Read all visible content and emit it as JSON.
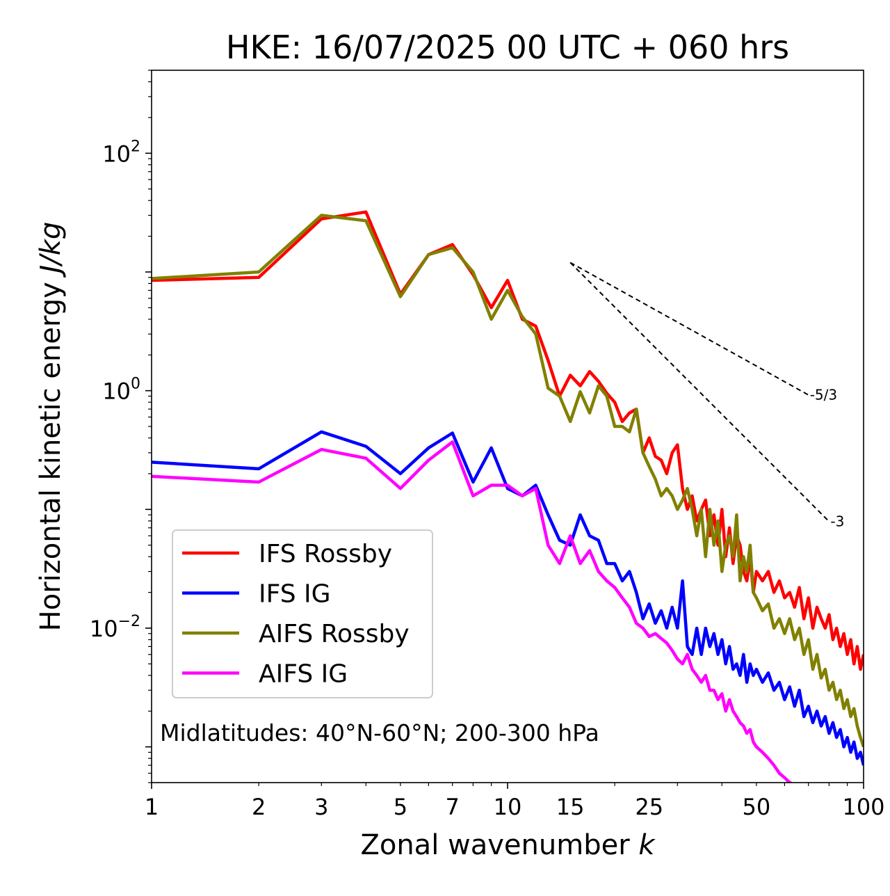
{
  "chart_data": {
    "type": "line",
    "title": "HKE: 16/07/2025 00 UTC + 060 hrs",
    "xlabel_text": "Zonal wavenumber ",
    "xlabel_symbol": "k",
    "ylabel_text": "Horizontal kinetic energy ",
    "ylabel_unit": "J/kg",
    "x_scale": "log",
    "y_scale": "log",
    "xlim": [
      1,
      100
    ],
    "ylim": [
      0.0005,
      500
    ],
    "x_ticks": [
      {
        "value": 1,
        "label": "1"
      },
      {
        "value": 2,
        "label": "2"
      },
      {
        "value": 3,
        "label": "3"
      },
      {
        "value": 5,
        "label": "5"
      },
      {
        "value": 7,
        "label": "7"
      },
      {
        "value": 10,
        "label": "10"
      },
      {
        "value": 15,
        "label": "15"
      },
      {
        "value": 25,
        "label": "25"
      },
      {
        "value": 50,
        "label": "50"
      },
      {
        "value": 100,
        "label": "100"
      }
    ],
    "y_ticks": [
      {
        "value": 100,
        "base": "10",
        "exp": "2"
      },
      {
        "value": 1,
        "base": "10",
        "exp": "0"
      },
      {
        "value": 0.01,
        "base": "10",
        "exp": "−2"
      }
    ],
    "legend_position": "lower-left",
    "annotation": "Midlatitudes: 40°N-60°N; 200-300 hPa",
    "reference_lines": [
      {
        "label": "-5/3",
        "slope": -1.6667,
        "x_start": 15,
        "y_start": 12,
        "x_end": 70
      },
      {
        "label": "-3",
        "slope": -3,
        "x_start": 15,
        "y_start": 12,
        "x_end": 80
      }
    ],
    "series": [
      {
        "name": "IFS Rossby",
        "color": "#ff0000",
        "x": [
          1,
          2,
          3,
          4,
          5,
          6,
          7,
          8,
          9,
          10,
          11,
          12,
          13,
          14,
          15,
          16,
          17,
          18,
          19,
          20,
          21,
          22,
          23,
          24,
          25,
          26,
          27,
          28,
          29,
          30,
          31,
          32,
          33,
          34,
          35,
          36,
          37,
          38,
          39,
          40,
          41,
          42,
          43,
          44,
          45,
          46,
          47,
          48,
          49,
          50,
          52,
          54,
          56,
          58,
          60,
          62,
          64,
          66,
          68,
          70,
          72,
          74,
          76,
          78,
          80,
          82,
          84,
          86,
          88,
          90,
          92,
          94,
          96,
          98,
          100
        ],
        "values": [
          8.5,
          9,
          28,
          32,
          6.5,
          14,
          17,
          9.5,
          5,
          8.5,
          4,
          3.5,
          1.8,
          0.9,
          1.35,
          1.1,
          1.45,
          1.2,
          0.95,
          0.8,
          0.55,
          0.65,
          0.7,
          0.3,
          0.4,
          0.28,
          0.26,
          0.2,
          0.3,
          0.35,
          0.15,
          0.1,
          0.13,
          0.08,
          0.1,
          0.12,
          0.06,
          0.09,
          0.05,
          0.1,
          0.04,
          0.07,
          0.035,
          0.06,
          0.05,
          0.03,
          0.025,
          0.04,
          0.02,
          0.03,
          0.025,
          0.03,
          0.02,
          0.025,
          0.018,
          0.02,
          0.015,
          0.022,
          0.012,
          0.018,
          0.01,
          0.015,
          0.012,
          0.01,
          0.013,
          0.008,
          0.01,
          0.007,
          0.009,
          0.006,
          0.008,
          0.005,
          0.007,
          0.0045,
          0.006
        ]
      },
      {
        "name": "IFS IG",
        "color": "#0000ff",
        "x": [
          1,
          2,
          3,
          4,
          5,
          6,
          7,
          8,
          9,
          10,
          11,
          12,
          13,
          14,
          15,
          16,
          17,
          18,
          19,
          20,
          21,
          22,
          23,
          24,
          25,
          26,
          27,
          28,
          29,
          30,
          31,
          32,
          33,
          34,
          35,
          36,
          37,
          38,
          39,
          40,
          41,
          42,
          43,
          44,
          45,
          46,
          47,
          48,
          49,
          50,
          52,
          54,
          56,
          58,
          60,
          62,
          64,
          66,
          68,
          70,
          72,
          74,
          76,
          78,
          80,
          82,
          84,
          86,
          88,
          90,
          92,
          94,
          96,
          98,
          100
        ],
        "values": [
          0.25,
          0.22,
          0.45,
          0.34,
          0.2,
          0.33,
          0.44,
          0.17,
          0.33,
          0.15,
          0.13,
          0.16,
          0.09,
          0.055,
          0.05,
          0.09,
          0.06,
          0.055,
          0.035,
          0.035,
          0.025,
          0.03,
          0.02,
          0.012,
          0.016,
          0.011,
          0.014,
          0.01,
          0.015,
          0.01,
          0.025,
          0.007,
          0.006,
          0.01,
          0.006,
          0.01,
          0.007,
          0.009,
          0.006,
          0.008,
          0.005,
          0.007,
          0.0045,
          0.005,
          0.004,
          0.006,
          0.0035,
          0.005,
          0.004,
          0.0045,
          0.0035,
          0.0042,
          0.003,
          0.0035,
          0.0025,
          0.0032,
          0.0022,
          0.003,
          0.0018,
          0.0022,
          0.0016,
          0.002,
          0.0015,
          0.0018,
          0.0013,
          0.0016,
          0.0012,
          0.0014,
          0.001,
          0.0012,
          0.0009,
          0.0011,
          0.0008,
          0.0009,
          0.0007
        ]
      },
      {
        "name": "AIFS Rossby",
        "color": "#808000",
        "x": [
          1,
          2,
          3,
          4,
          5,
          6,
          7,
          8,
          9,
          10,
          11,
          12,
          13,
          14,
          15,
          16,
          17,
          18,
          19,
          20,
          21,
          22,
          23,
          24,
          25,
          26,
          27,
          28,
          29,
          30,
          31,
          32,
          33,
          34,
          35,
          36,
          37,
          38,
          39,
          40,
          41,
          42,
          43,
          44,
          45,
          46,
          47,
          48,
          49,
          50,
          52,
          54,
          56,
          58,
          60,
          62,
          64,
          66,
          68,
          70,
          72,
          74,
          76,
          78,
          80,
          82,
          84,
          86,
          88,
          90,
          92,
          94,
          96,
          98,
          100
        ],
        "values": [
          8.8,
          10,
          30,
          27,
          6.2,
          14,
          16,
          10,
          4,
          7,
          4.2,
          3,
          1.05,
          0.9,
          0.55,
          0.98,
          0.65,
          1.1,
          0.9,
          0.5,
          0.5,
          0.45,
          0.7,
          0.3,
          0.23,
          0.18,
          0.13,
          0.15,
          0.13,
          0.1,
          0.12,
          0.15,
          0.1,
          0.06,
          0.1,
          0.04,
          0.1,
          0.05,
          0.08,
          0.03,
          0.05,
          0.06,
          0.04,
          0.09,
          0.025,
          0.04,
          0.03,
          0.05,
          0.02,
          0.018,
          0.014,
          0.016,
          0.01,
          0.012,
          0.009,
          0.012,
          0.008,
          0.01,
          0.006,
          0.008,
          0.0045,
          0.006,
          0.0038,
          0.0045,
          0.003,
          0.0035,
          0.0025,
          0.003,
          0.0021,
          0.0025,
          0.0018,
          0.0021,
          0.0015,
          0.0012,
          0.001
        ]
      },
      {
        "name": "AIFS IG",
        "color": "#ff00ff",
        "x": [
          1,
          2,
          3,
          4,
          5,
          6,
          7,
          8,
          9,
          10,
          11,
          12,
          13,
          14,
          15,
          16,
          17,
          18,
          19,
          20,
          21,
          22,
          23,
          24,
          25,
          26,
          27,
          28,
          29,
          30,
          31,
          32,
          33,
          34,
          35,
          36,
          37,
          38,
          39,
          40,
          41,
          42,
          43,
          44,
          45,
          46,
          47,
          48,
          49,
          50,
          52,
          54,
          56,
          58,
          60,
          62,
          64,
          66,
          68
        ],
        "values": [
          0.19,
          0.17,
          0.32,
          0.27,
          0.15,
          0.26,
          0.37,
          0.13,
          0.16,
          0.16,
          0.13,
          0.15,
          0.05,
          0.035,
          0.06,
          0.035,
          0.045,
          0.03,
          0.025,
          0.022,
          0.018,
          0.015,
          0.011,
          0.01,
          0.0085,
          0.009,
          0.0082,
          0.0075,
          0.0065,
          0.0055,
          0.005,
          0.006,
          0.0045,
          0.004,
          0.0035,
          0.004,
          0.003,
          0.003,
          0.0025,
          0.0028,
          0.002,
          0.0025,
          0.002,
          0.0018,
          0.0016,
          0.0015,
          0.0013,
          0.0014,
          0.0011,
          0.001,
          0.0009,
          0.0008,
          0.0007,
          0.0006,
          0.00055,
          0.0005,
          0.00048,
          0.00045,
          0.0004
        ]
      }
    ]
  }
}
